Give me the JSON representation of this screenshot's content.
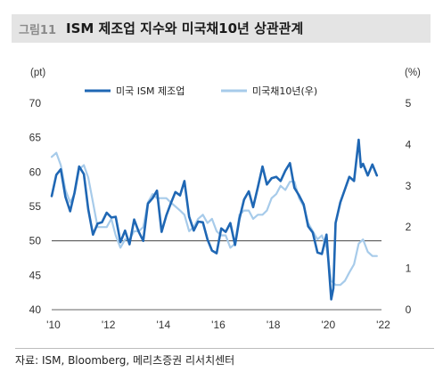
{
  "header": {
    "figure_number": "그림11",
    "title": "ISM 제조업 지수와 미국채10년 상관관계"
  },
  "source": "자료: ISM, Bloomberg, 메리츠증권 리서치센터",
  "chart_data": {
    "type": "line",
    "left_unit": "(pt)",
    "right_unit": "(%)",
    "x_ticks": [
      "'10",
      "'12",
      "'14",
      "'16",
      "'18",
      "'20",
      "'22"
    ],
    "x_range": [
      2010,
      2022
    ],
    "left_ylim": [
      40,
      70
    ],
    "left_ticks": [
      "40",
      "45",
      "50",
      "55",
      "60",
      "65",
      "70"
    ],
    "right_ylim": [
      0,
      5
    ],
    "right_ticks": [
      "0",
      "1",
      "2",
      "3",
      "4",
      "5"
    ],
    "reference_line": {
      "axis": "left",
      "value": 50
    },
    "legend_position": "top",
    "grid": false,
    "series": [
      {
        "name": "미국 ISM 제조업",
        "axis": "left",
        "color": "#1f67b4",
        "x": [
          2010.0,
          2010.17,
          2010.33,
          2010.5,
          2010.67,
          2010.83,
          2011.0,
          2011.17,
          2011.33,
          2011.5,
          2011.67,
          2011.83,
          2012.0,
          2012.17,
          2012.33,
          2012.5,
          2012.67,
          2012.83,
          2013.0,
          2013.17,
          2013.33,
          2013.5,
          2013.67,
          2013.83,
          2014.0,
          2014.17,
          2014.33,
          2014.5,
          2014.67,
          2014.83,
          2015.0,
          2015.17,
          2015.33,
          2015.5,
          2015.67,
          2015.83,
          2016.0,
          2016.17,
          2016.33,
          2016.5,
          2016.67,
          2016.83,
          2017.0,
          2017.17,
          2017.33,
          2017.5,
          2017.67,
          2017.83,
          2018.0,
          2018.17,
          2018.33,
          2018.5,
          2018.67,
          2018.83,
          2019.0,
          2019.17,
          2019.33,
          2019.5,
          2019.67,
          2019.83,
          2020.0,
          2020.17,
          2020.25,
          2020.33,
          2020.5,
          2020.67,
          2020.83,
          2021.0,
          2021.17,
          2021.25,
          2021.33,
          2021.5,
          2021.67,
          2021.83
        ],
        "values": [
          56.5,
          59.6,
          60.4,
          56.4,
          54.3,
          57.0,
          60.8,
          59.7,
          54.6,
          50.9,
          52.5,
          52.7,
          54.1,
          53.4,
          53.5,
          49.8,
          51.5,
          49.5,
          53.1,
          51.3,
          50.0,
          55.4,
          56.2,
          57.3,
          51.3,
          53.7,
          55.4,
          57.1,
          56.6,
          58.7,
          53.5,
          51.5,
          52.8,
          52.7,
          50.2,
          48.6,
          48.2,
          51.8,
          51.3,
          52.6,
          49.4,
          53.2,
          56.0,
          57.2,
          54.9,
          57.8,
          60.8,
          58.2,
          59.1,
          59.3,
          58.7,
          60.2,
          61.3,
          57.7,
          56.6,
          55.3,
          52.1,
          51.2,
          48.3,
          48.1,
          50.9,
          41.5,
          43.1,
          52.6,
          55.6,
          57.5,
          59.3,
          58.7,
          64.7,
          60.7,
          61.2,
          59.5,
          61.1,
          59.5
        ]
      },
      {
        "name": "미국채10년(우)",
        "axis": "right",
        "color": "#a7cbea",
        "x": [
          2010.0,
          2010.17,
          2010.33,
          2010.5,
          2010.67,
          2010.83,
          2011.0,
          2011.17,
          2011.33,
          2011.5,
          2011.67,
          2011.83,
          2012.0,
          2012.17,
          2012.33,
          2012.5,
          2012.67,
          2012.83,
          2013.0,
          2013.17,
          2013.33,
          2013.5,
          2013.67,
          2013.83,
          2014.0,
          2014.17,
          2014.33,
          2014.5,
          2014.67,
          2014.83,
          2015.0,
          2015.17,
          2015.33,
          2015.5,
          2015.67,
          2015.83,
          2016.0,
          2016.17,
          2016.33,
          2016.5,
          2016.67,
          2016.83,
          2017.0,
          2017.17,
          2017.33,
          2017.5,
          2017.67,
          2017.83,
          2018.0,
          2018.17,
          2018.33,
          2018.5,
          2018.67,
          2018.83,
          2019.0,
          2019.17,
          2019.33,
          2019.5,
          2019.67,
          2019.83,
          2020.0,
          2020.17,
          2020.33,
          2020.5,
          2020.67,
          2020.83,
          2021.0,
          2021.17,
          2021.33,
          2021.5,
          2021.67,
          2021.83
        ],
        "values": [
          3.7,
          3.8,
          3.5,
          2.9,
          2.6,
          2.8,
          3.4,
          3.5,
          3.2,
          2.6,
          2.0,
          2.0,
          2.0,
          2.2,
          1.8,
          1.5,
          1.7,
          1.7,
          1.9,
          1.9,
          2.0,
          2.6,
          2.8,
          2.7,
          2.7,
          2.7,
          2.6,
          2.5,
          2.4,
          2.3,
          1.9,
          2.0,
          2.2,
          2.3,
          2.1,
          2.2,
          1.9,
          1.8,
          1.8,
          1.5,
          1.6,
          2.3,
          2.4,
          2.4,
          2.2,
          2.3,
          2.3,
          2.4,
          2.7,
          2.8,
          3.0,
          2.9,
          3.1,
          3.1,
          2.7,
          2.5,
          2.1,
          1.9,
          1.7,
          1.8,
          1.5,
          0.7,
          0.6,
          0.6,
          0.7,
          0.9,
          1.1,
          1.6,
          1.7,
          1.4,
          1.3,
          1.3
        ]
      }
    ]
  }
}
